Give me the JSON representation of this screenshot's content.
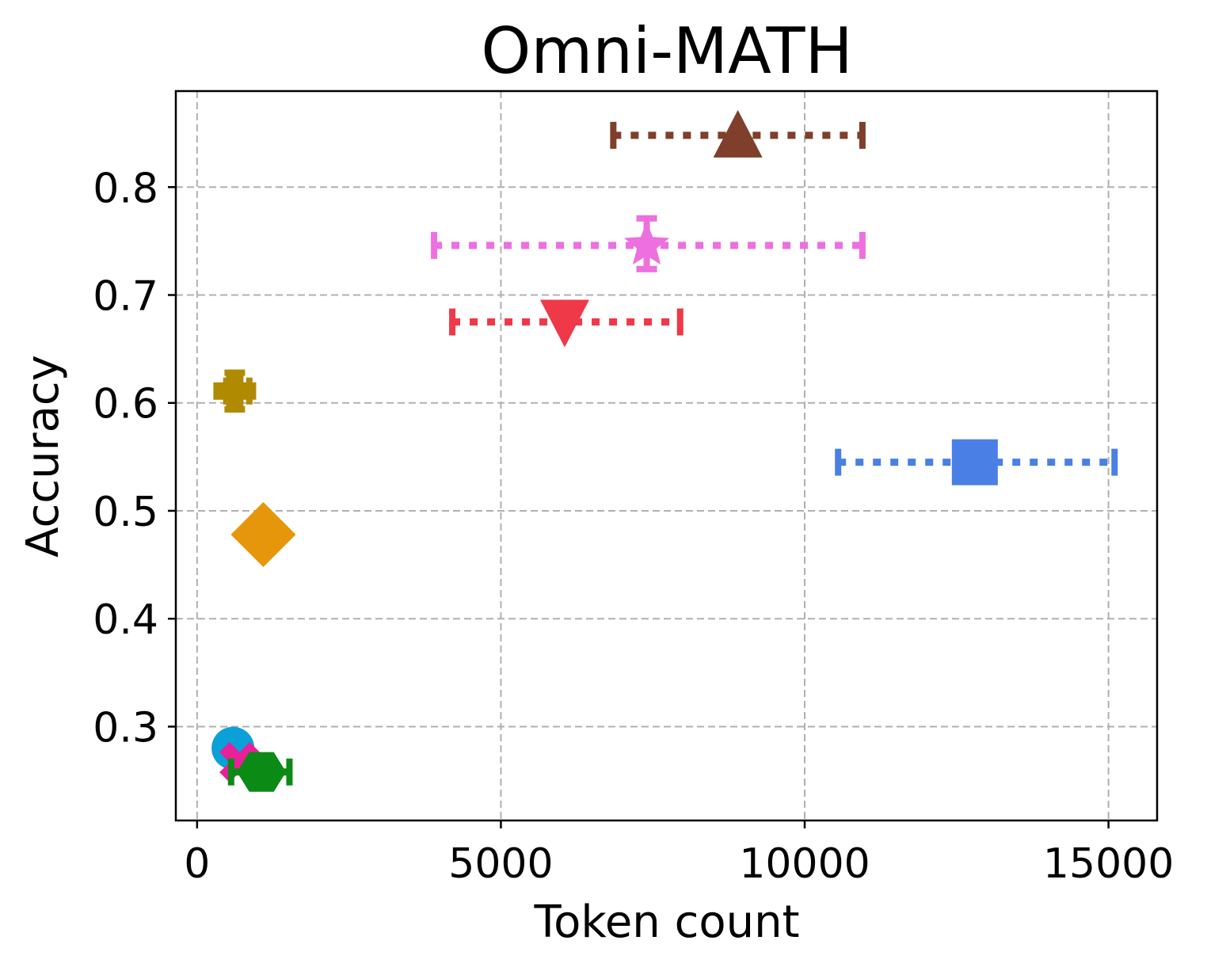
{
  "chart_data": {
    "type": "scatter",
    "title": "Omni-MATH",
    "xlabel": "Token count",
    "ylabel": "Accuracy",
    "xlim": [
      -350,
      15800
    ],
    "ylim": [
      0.213,
      0.889
    ],
    "xticks": [
      0,
      5000,
      10000,
      15000
    ],
    "xtick_labels": [
      "0",
      "5000",
      "10000",
      "15000"
    ],
    "yticks": [
      0.3,
      0.4,
      0.5,
      0.6,
      0.7,
      0.8
    ],
    "ytick_labels": [
      "0.3",
      "0.4",
      "0.5",
      "0.6",
      "0.7",
      "0.8"
    ],
    "grid": true,
    "series": [
      {
        "marker": "triangle-up",
        "color": "#7f3f2a",
        "x": 8900,
        "y": 0.848,
        "x_err": [
          6850,
          10950
        ],
        "y_err": null
      },
      {
        "marker": "star",
        "color": "#ee6fe0",
        "x": 7400,
        "y": 0.746,
        "x_err": [
          3900,
          10950
        ],
        "y_err": [
          0.724,
          0.771
        ]
      },
      {
        "marker": "triangle-down",
        "color": "#ef3848",
        "x": 6050,
        "y": 0.675,
        "x_err": [
          4200,
          7950
        ],
        "y_err": null
      },
      {
        "marker": "plus",
        "color": "#b08a00",
        "x": 620,
        "y": 0.611,
        "x_err": [
          480,
          860
        ],
        "y_err": [
          0.594,
          0.628
        ]
      },
      {
        "marker": "square",
        "color": "#4a7fe6",
        "x": 12800,
        "y": 0.545,
        "x_err": [
          10550,
          15100
        ],
        "y_err": null
      },
      {
        "marker": "diamond",
        "color": "#e5960a",
        "x": 1090,
        "y": 0.478,
        "x_err": null,
        "y_err": null
      },
      {
        "marker": "circle",
        "color": "#0aa0d8",
        "x": 590,
        "y": 0.28,
        "x_err": null,
        "y_err": null
      },
      {
        "marker": "x",
        "color": "#e8209a",
        "x": 700,
        "y": 0.267,
        "x_err": null,
        "y_err": null
      },
      {
        "marker": "hexagon",
        "color": "#0b8a16",
        "x": 1060,
        "y": 0.258,
        "x_err": [
          560,
          1520
        ],
        "y_err": null
      }
    ]
  }
}
